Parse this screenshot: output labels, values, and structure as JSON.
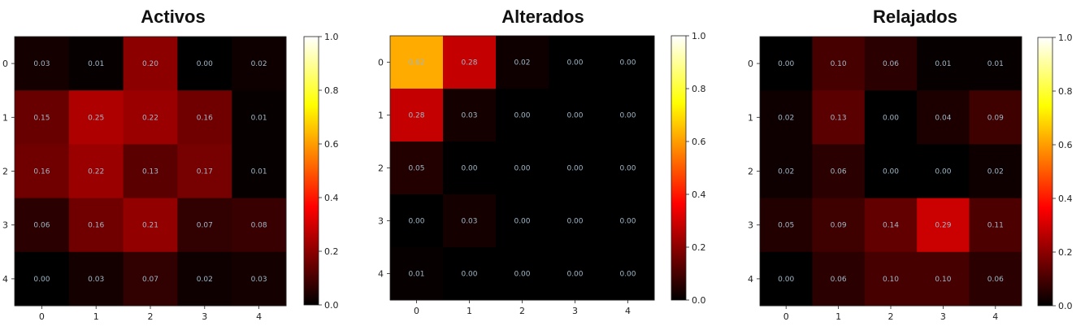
{
  "chart_data": [
    {
      "type": "heatmap",
      "title": "Activos",
      "x_ticks": [
        "0",
        "1",
        "2",
        "3",
        "4"
      ],
      "y_ticks": [
        "0",
        "1",
        "2",
        "3",
        "4"
      ],
      "colormap": "hot",
      "vmin": 0.0,
      "vmax": 1.0,
      "colorbar_ticks": [
        "0.0",
        "0.2",
        "0.4",
        "0.6",
        "0.8",
        "1.0"
      ],
      "values": [
        [
          0.03,
          0.01,
          0.2,
          0.0,
          0.02
        ],
        [
          0.15,
          0.25,
          0.22,
          0.16,
          0.01
        ],
        [
          0.16,
          0.22,
          0.13,
          0.17,
          0.01
        ],
        [
          0.06,
          0.16,
          0.21,
          0.07,
          0.08
        ],
        [
          0.0,
          0.03,
          0.07,
          0.02,
          0.03
        ]
      ],
      "labels": [
        [
          "0.03",
          "0.01",
          "0.20",
          "0.00",
          "0.02"
        ],
        [
          "0.15",
          "0.25",
          "0.22",
          "0.16",
          "0.01"
        ],
        [
          "0.16",
          "0.22",
          "0.13",
          "0.17",
          "0.01"
        ],
        [
          "0.06",
          "0.16",
          "0.21",
          "0.07",
          "0.08"
        ],
        [
          "0.00",
          "0.03",
          "0.07",
          "0.02",
          "0.03"
        ]
      ]
    },
    {
      "type": "heatmap",
      "title": "Alterados",
      "x_ticks": [
        "0",
        "1",
        "2",
        "3",
        "4"
      ],
      "y_ticks": [
        "0",
        "1",
        "2",
        "3",
        "4"
      ],
      "colormap": "hot",
      "vmin": 0.0,
      "vmax": 1.0,
      "colorbar_ticks": [
        "0.0",
        "0.2",
        "0.4",
        "0.6",
        "0.8",
        "1.0"
      ],
      "values": [
        [
          0.62,
          0.28,
          0.02,
          0.0,
          0.0
        ],
        [
          0.28,
          0.03,
          0.0,
          0.0,
          0.0
        ],
        [
          0.05,
          0.0,
          0.0,
          0.0,
          0.0
        ],
        [
          0.0,
          0.03,
          0.0,
          0.0,
          0.0
        ],
        [
          0.01,
          0.0,
          0.0,
          0.0,
          0.0
        ]
      ],
      "labels": [
        [
          "0.62",
          "0.28",
          "0.02",
          "0.00",
          "0.00"
        ],
        [
          "0.28",
          "0.03",
          "0.00",
          "0.00",
          "0.00"
        ],
        [
          "0.05",
          "0.00",
          "0.00",
          "0.00",
          "0.00"
        ],
        [
          "0.00",
          "0.03",
          "0.00",
          "0.00",
          "0.00"
        ],
        [
          "0.01",
          "0.00",
          "0.00",
          "0.00",
          "0.00"
        ]
      ]
    },
    {
      "type": "heatmap",
      "title": "Relajados",
      "x_ticks": [
        "0",
        "1",
        "2",
        "3",
        "4"
      ],
      "y_ticks": [
        "0",
        "1",
        "2",
        "3",
        "4"
      ],
      "colormap": "hot",
      "vmin": 0.0,
      "vmax": 1.0,
      "colorbar_ticks": [
        "0.0",
        "0.2",
        "0.4",
        "0.6",
        "0.8",
        "1.0"
      ],
      "values": [
        [
          0.0,
          0.1,
          0.06,
          0.01,
          0.01
        ],
        [
          0.02,
          0.13,
          0.0,
          0.04,
          0.09
        ],
        [
          0.02,
          0.06,
          0.0,
          0.0,
          0.02
        ],
        [
          0.05,
          0.09,
          0.14,
          0.29,
          0.11
        ],
        [
          0.0,
          0.06,
          0.1,
          0.1,
          0.06
        ]
      ],
      "labels": [
        [
          "0.00",
          "0.10",
          "0.06",
          "0.01",
          "0.01"
        ],
        [
          "0.02",
          "0.13",
          "0.00",
          "0.04",
          "0.09"
        ],
        [
          "0.02",
          "0.06",
          "0.00",
          "0.00",
          "0.02"
        ],
        [
          "0.05",
          "0.09",
          "0.14",
          "0.29",
          "0.11"
        ],
        [
          "0.00",
          "0.06",
          "0.10",
          "0.10",
          "0.06"
        ]
      ]
    }
  ]
}
